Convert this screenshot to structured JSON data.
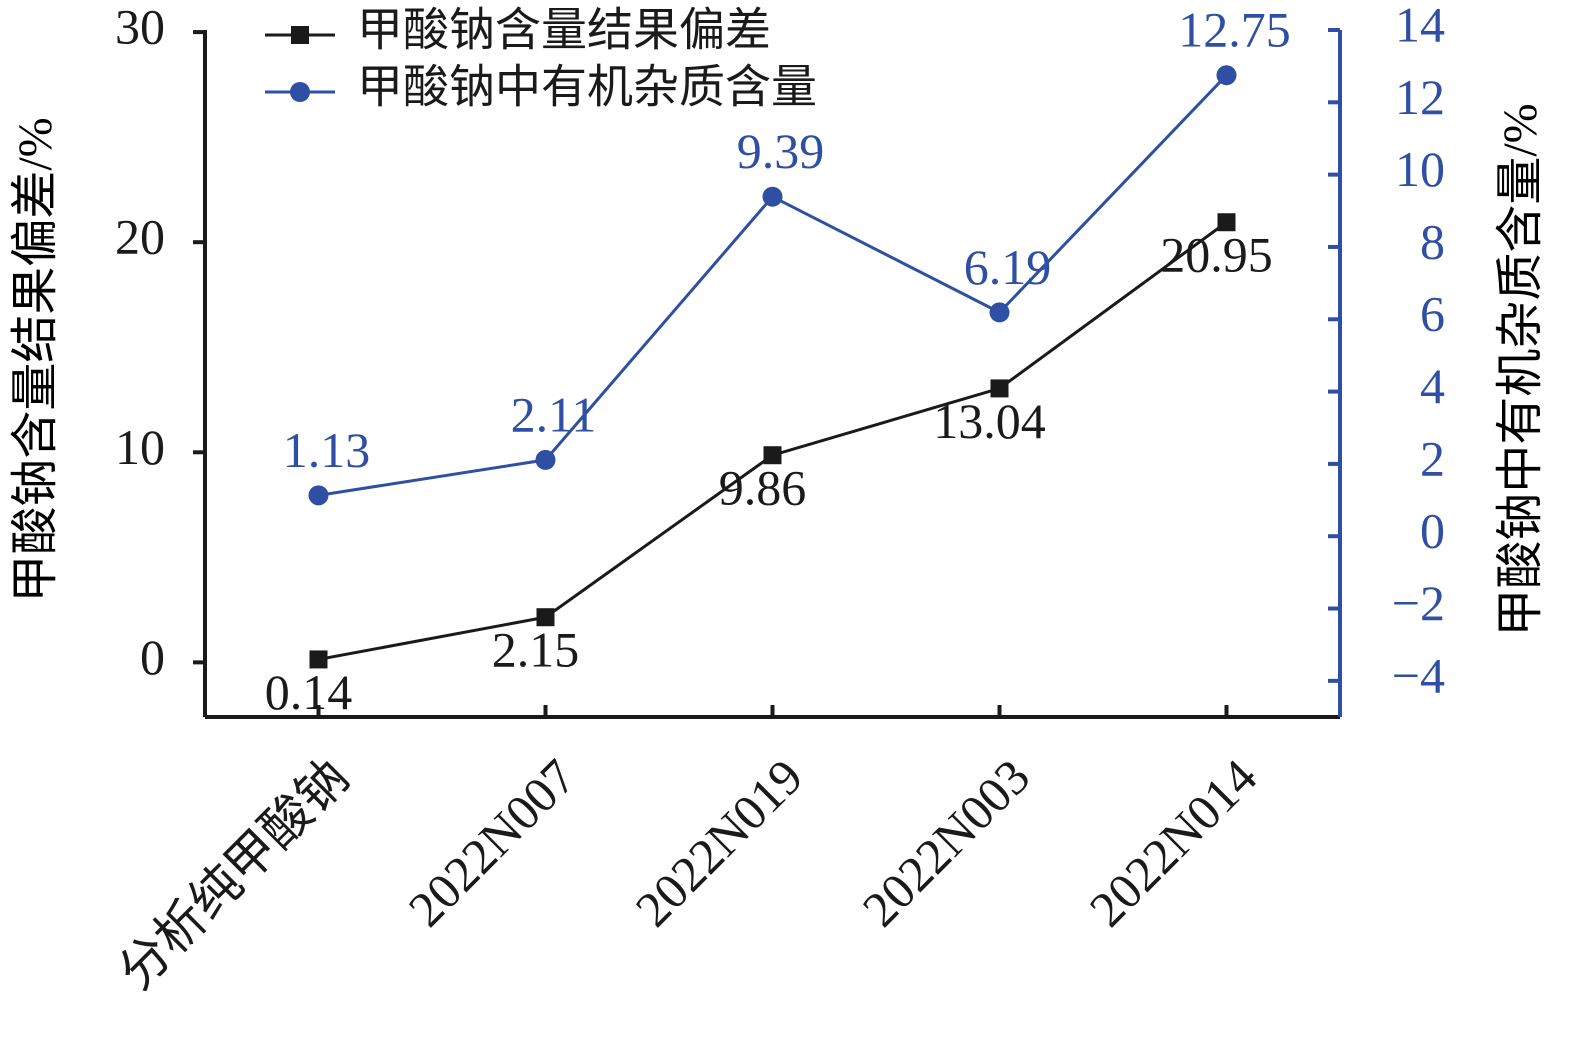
{
  "chart_data": {
    "type": "line",
    "y_label": "甲酸钠含量结果偏差/%",
    "y2_label": "甲酸钠中有机杂质含量/%",
    "categories": [
      "分析纯甲酸钠",
      "2022N007",
      "2022N019",
      "2022N003",
      "2022N014"
    ],
    "series": [
      {
        "name": "甲酸钠含量结果偏差",
        "color": "#1a1a1a",
        "marker": "square",
        "values": [
          0.14,
          2.15,
          9.86,
          13.04,
          20.95
        ]
      },
      {
        "name": "甲酸钠中有机杂质含量",
        "color": "#2e4fa3",
        "marker": "circle",
        "axis": "y2",
        "values": [
          1.13,
          2.11,
          9.39,
          6.19,
          12.75
        ]
      }
    ],
    "ylim": [
      -2.6,
      30.1
    ],
    "yticks": [
      0,
      10,
      20,
      30
    ],
    "y2lim": [
      -5,
      14
    ],
    "y2ticks": [
      {
        "value": -4,
        "label": "−4"
      },
      {
        "value": -2,
        "label": "−2"
      },
      0,
      2,
      4,
      6,
      8,
      10,
      12,
      14
    ],
    "legend": "upper left",
    "grid": false
  }
}
